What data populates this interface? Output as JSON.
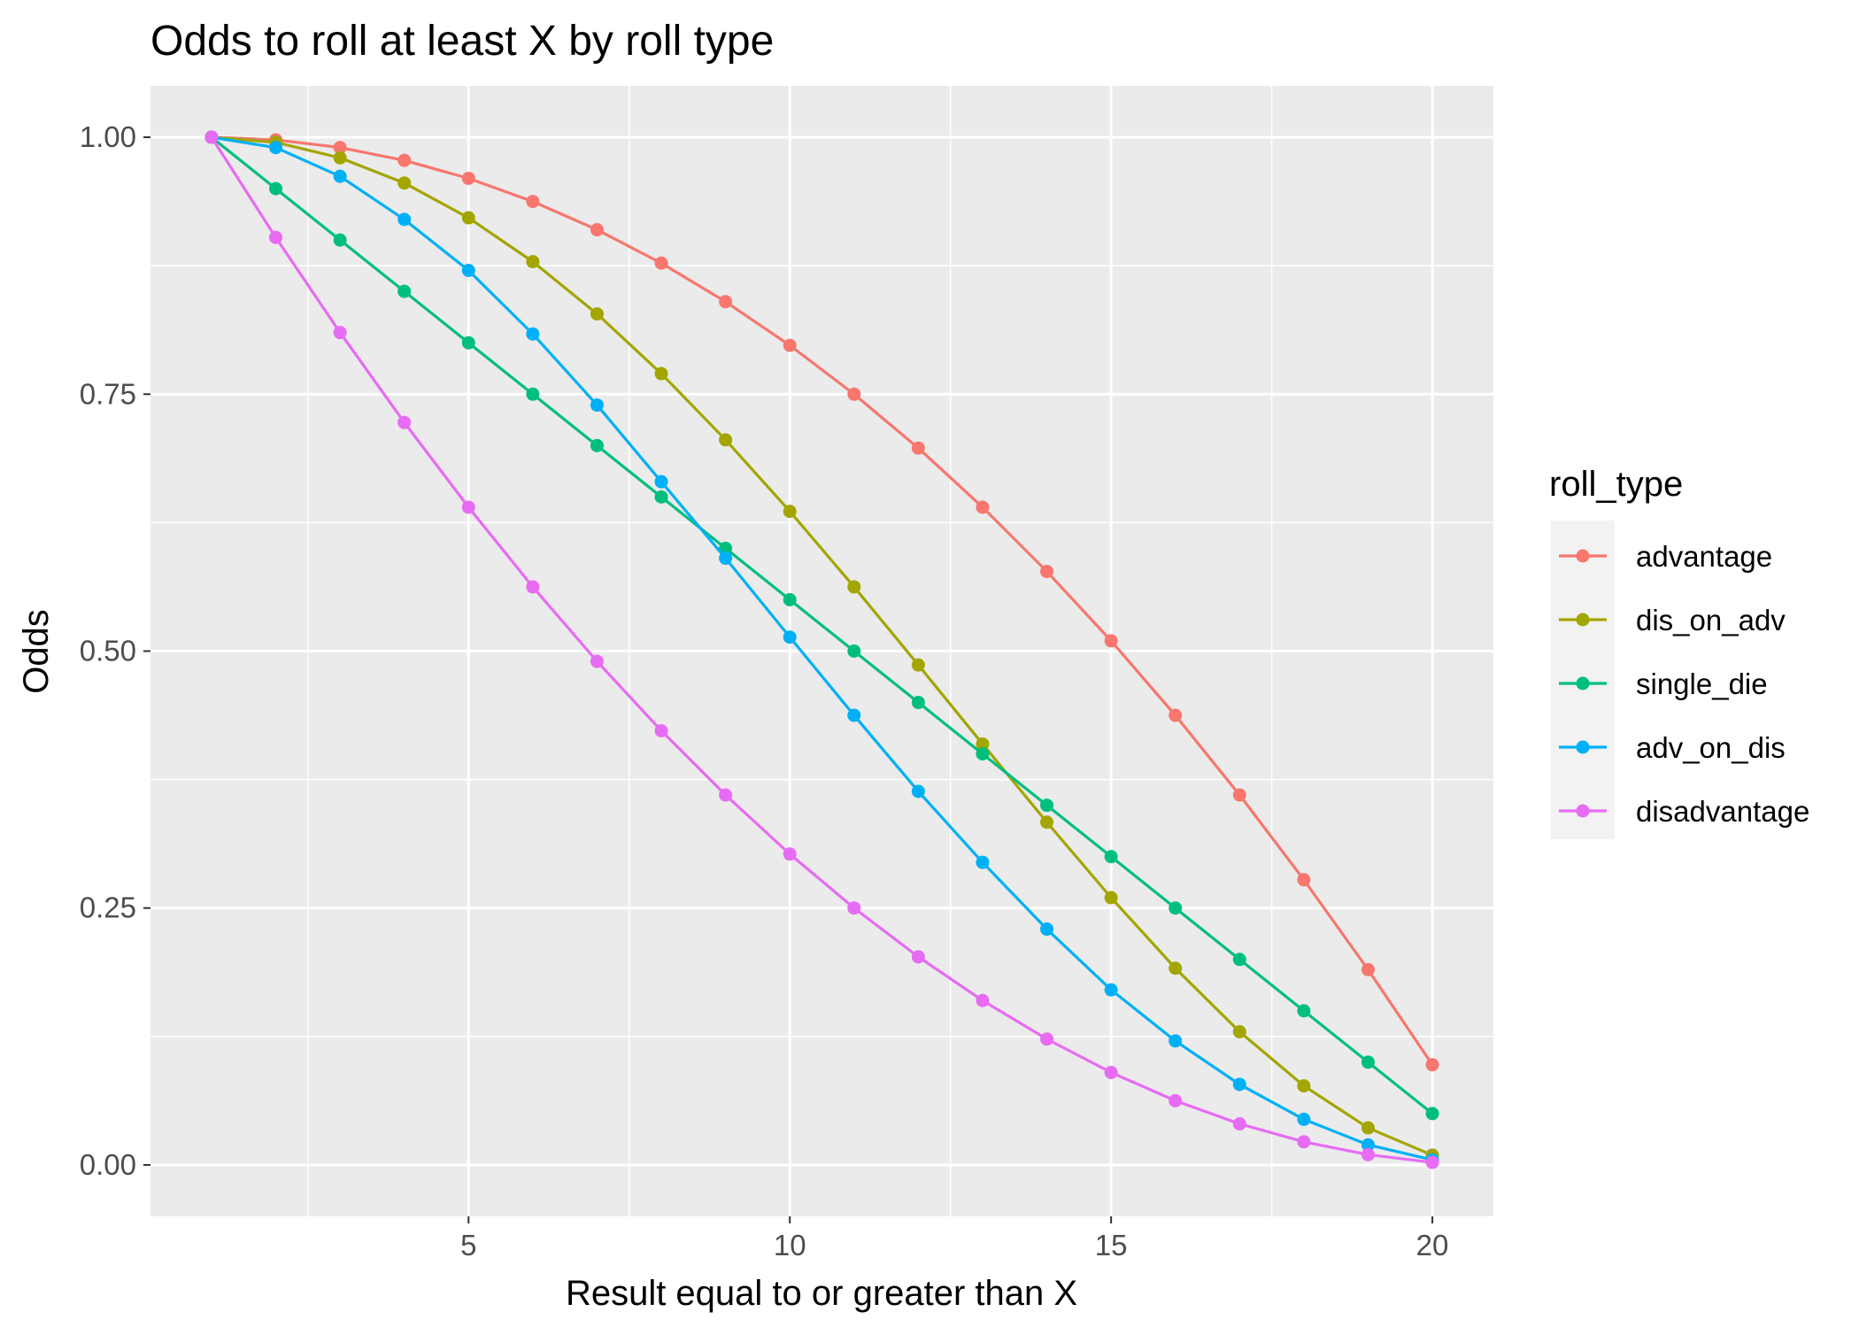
{
  "chart_data": {
    "type": "line",
    "title": "Odds to roll at least X by roll type",
    "xlabel": "Result equal to or greater than X",
    "ylabel": "Odds",
    "xlim": [
      0.05,
      20.95
    ],
    "ylim": [
      -0.05,
      1.05
    ],
    "x_ticks": [
      5,
      10,
      15,
      20
    ],
    "x_tick_labels": [
      "5",
      "10",
      "15",
      "20"
    ],
    "y_ticks": [
      0,
      0.25,
      0.5,
      0.75,
      1
    ],
    "y_tick_labels": [
      "0.00",
      "0.25",
      "0.50",
      "0.75",
      "1.00"
    ],
    "grid": true,
    "legend_position": "right",
    "legend_title": "roll_type",
    "x": [
      1,
      2,
      3,
      4,
      5,
      6,
      7,
      8,
      9,
      10,
      11,
      12,
      13,
      14,
      15,
      16,
      17,
      18,
      19,
      20
    ],
    "series": [
      {
        "name": "advantage",
        "color": "#F8766D",
        "values": [
          1.0,
          0.9975,
          0.99,
          0.9775,
          0.96,
          0.9375,
          0.91,
          0.8775,
          0.84,
          0.7975,
          0.75,
          0.6975,
          0.64,
          0.5775,
          0.51,
          0.4375,
          0.36,
          0.2775,
          0.19,
          0.0975
        ]
      },
      {
        "name": "dis_on_adv",
        "color": "#A3A500",
        "values": [
          1.0,
          0.995,
          0.98,
          0.9555,
          0.9216,
          0.8789,
          0.8281,
          0.77,
          0.7056,
          0.636,
          0.5625,
          0.4865,
          0.4096,
          0.3335,
          0.2601,
          0.1914,
          0.1296,
          0.077,
          0.0361,
          0.0095
        ]
      },
      {
        "name": "single_die",
        "color": "#00BF7D",
        "values": [
          1.0,
          0.95,
          0.9,
          0.85,
          0.8,
          0.75,
          0.7,
          0.65,
          0.6,
          0.55,
          0.5,
          0.45,
          0.4,
          0.35,
          0.3,
          0.25,
          0.2,
          0.15,
          0.1,
          0.05
        ]
      },
      {
        "name": "adv_on_dis",
        "color": "#00B0F6",
        "values": [
          1.0,
          0.99,
          0.962,
          0.92,
          0.8704,
          0.8086,
          0.7394,
          0.6648,
          0.5904,
          0.5136,
          0.4375,
          0.3635,
          0.2944,
          0.2295,
          0.1704,
          0.1207,
          0.0784,
          0.0444,
          0.0196,
          0.005
        ]
      },
      {
        "name": "disadvantage",
        "color": "#E76BF3",
        "values": [
          1.0,
          0.9025,
          0.81,
          0.7225,
          0.64,
          0.5625,
          0.49,
          0.4225,
          0.36,
          0.3025,
          0.25,
          0.2025,
          0.16,
          0.1225,
          0.09,
          0.0625,
          0.04,
          0.0225,
          0.01,
          0.0025
        ]
      }
    ]
  }
}
